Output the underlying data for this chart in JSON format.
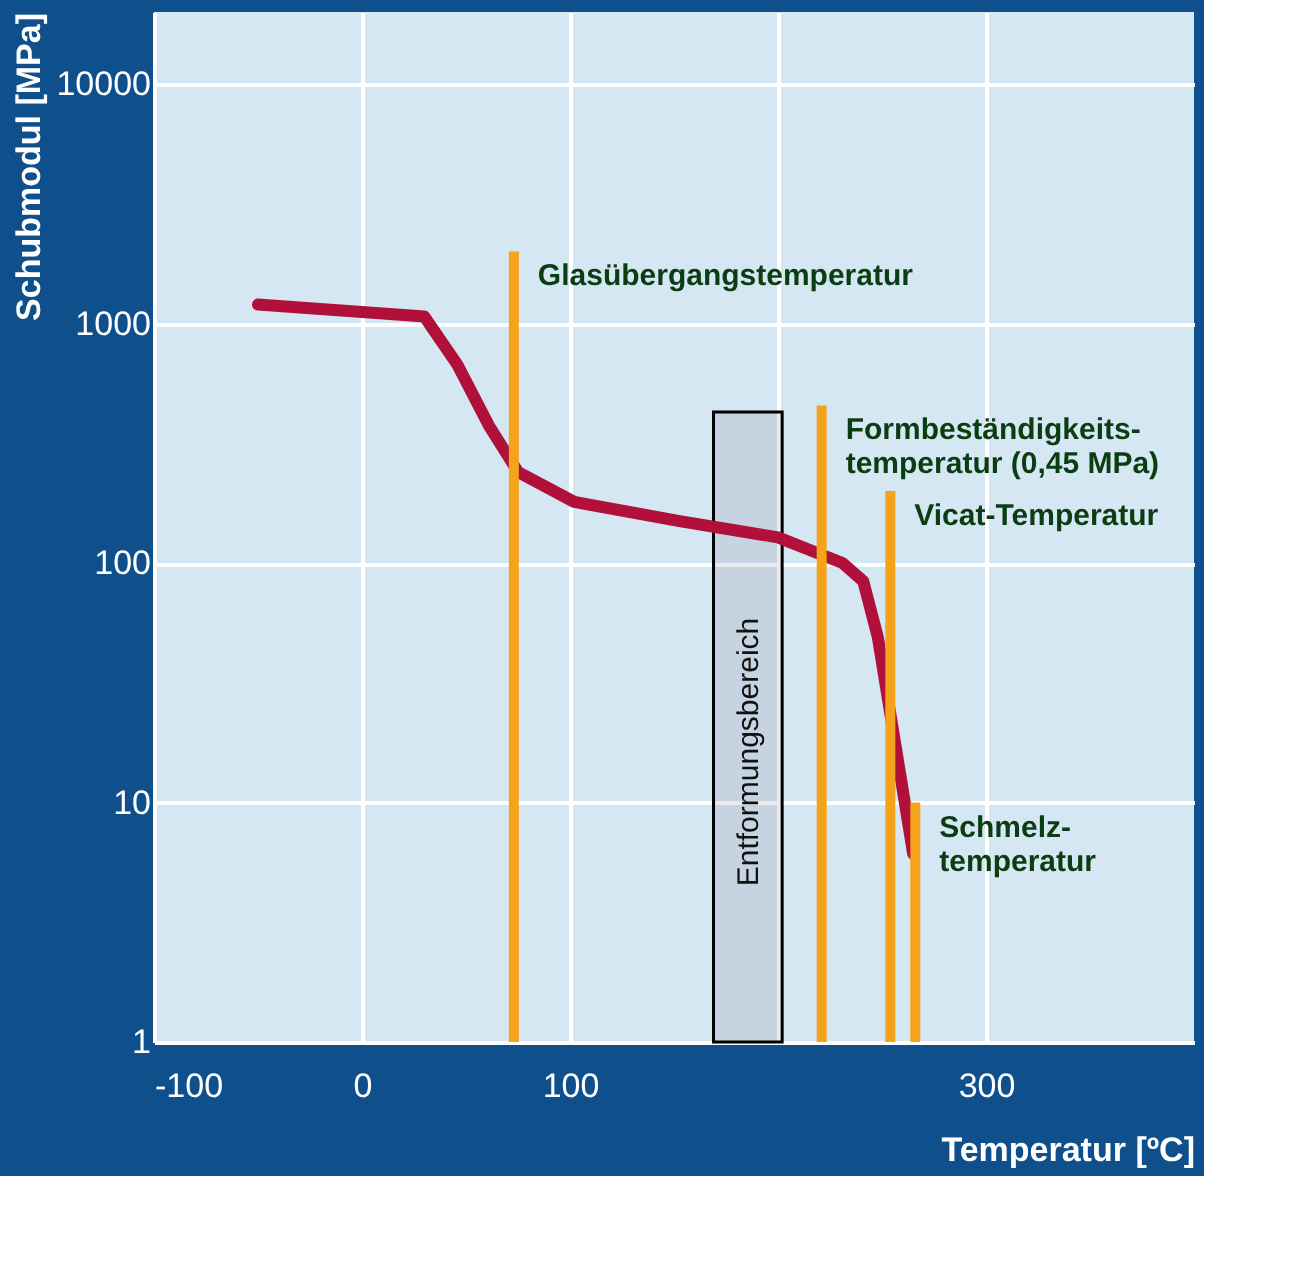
{
  "chart_data": {
    "type": "line",
    "xlabel": "Temperatur [ºC]",
    "ylabel": "Schubmodul [MPa]",
    "log": "y",
    "xlim": [
      -100,
      400
    ],
    "ylim": [
      1,
      20000
    ],
    "xticks": [
      -100,
      0,
      100,
      {
        "value": 200,
        "label": null
      },
      300
    ],
    "yticks": [
      1,
      10,
      100,
      1000,
      10000
    ],
    "grid": true,
    "series": [
      {
        "color": "#b0103a",
        "x": [
          -50,
          30,
          46,
          61,
          75,
          102,
          152,
          200,
          231,
          241,
          248,
          265
        ],
        "values": [
          1200,
          1070,
          670,
          375,
          240,
          180,
          150,
          128,
          100,
          84,
          49,
          6.1
        ]
      },
      {
        "type": "bar",
        "color": "#f5a31a",
        "x": [
          73,
          221,
          254,
          266
        ],
        "values": [
          2000,
          455,
          200,
          10
        ]
      }
    ],
    "bands": [
      {
        "axis": "x",
        "from": 169,
        "to": 202,
        "label": "Entformungsbereich",
        "color": "#000000"
      }
    ],
    "annotations": [
      {
        "text": "Glasübergangstemperatur",
        "x": 73,
        "y": 2000
      },
      {
        "text": "Formbeständigkeits-\ntemperatur (0,45 MPa)",
        "x": 221,
        "y": 455
      },
      {
        "text": "Vicat-Temperatur",
        "x": 254,
        "y": 200
      },
      {
        "text": "Schmelz-\ntemperatur",
        "x": 266,
        "y": 10
      }
    ]
  }
}
